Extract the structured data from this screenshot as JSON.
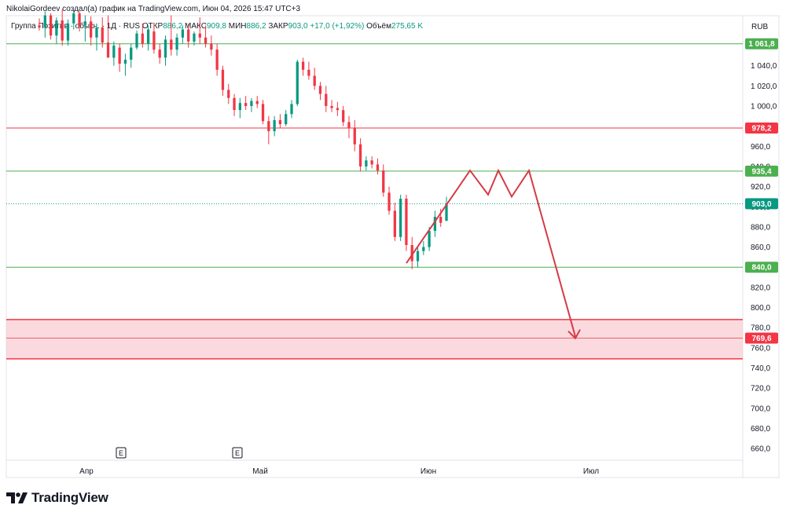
{
  "header": {
    "publish_note": "NikolaiGordeev создал(a) график на TradingView.com, Июн 04, 2026 15:47 UTC+3",
    "symbol": "Группа Позитив · обыкн. · 1Д · RUS",
    "open_label": "ОТКР",
    "open_value": "886,2",
    "high_label": "МАКС",
    "high_value": "909,8",
    "low_label": "МИН",
    "low_value": "886,2",
    "close_label": "ЗАКР",
    "close_value": "903,0",
    "change": "+17,0 (+1,92%)",
    "volume_label": "Объём",
    "volume_value": "275,65 K",
    "currency": "RUB"
  },
  "colors": {
    "up": "#089981",
    "down": "#f23645",
    "support": "#4caf50",
    "resistance": "#f23645",
    "zone_fill": "#f8cdd3",
    "projection": "#d63a46",
    "axis_text": "#131722",
    "last_price_line": "#089981"
  },
  "chart_data": {
    "type": "candlestick",
    "symbol": "Группа Позитив",
    "timeframe": "1Д",
    "y_axis_ticks": [
      1040,
      1020,
      1000,
      980,
      960,
      940,
      920,
      900,
      880,
      860,
      840,
      820,
      800,
      780,
      760,
      740,
      720,
      700,
      680,
      660
    ],
    "y_tick_labels": [
      "1 040,0",
      "1 020,0",
      "1 000,0",
      "980,0",
      "960,0",
      "940,0",
      "920,0",
      "900,0",
      "880,0",
      "860,0",
      "840,0",
      "820,0",
      "800,0",
      "780,0",
      "760,0",
      "740,0",
      "720,0",
      "700,0",
      "680,0",
      "660,0"
    ],
    "ylim": [
      648,
      1100
    ],
    "x_axis_labels": [
      "Апр",
      "Май",
      "Июн",
      "Июл"
    ],
    "events": [
      "E",
      "E"
    ],
    "levels": [
      {
        "value": 1061.8,
        "label": "1 061,8",
        "kind": "support"
      },
      {
        "value": 978.2,
        "label": "978,2",
        "kind": "resistance"
      },
      {
        "value": 935.4,
        "label": "935,4",
        "kind": "support"
      },
      {
        "value": 903.0,
        "label": "903,0",
        "kind": "last"
      },
      {
        "value": 840.0,
        "label": "840,0",
        "kind": "support"
      }
    ],
    "zone": {
      "top": 788,
      "bottom": 749,
      "mid": 769.6,
      "label": "769,6"
    },
    "candles": [
      [
        1080,
        1087,
        1075,
        1078
      ],
      [
        1078,
        1094,
        1068,
        1090
      ],
      [
        1090,
        1092,
        1066,
        1070
      ],
      [
        1070,
        1088,
        1062,
        1085
      ],
      [
        1085,
        1096,
        1060,
        1065
      ],
      [
        1065,
        1086,
        1060,
        1082
      ],
      [
        1082,
        1095,
        1076,
        1092
      ],
      [
        1092,
        1094,
        1074,
        1080
      ],
      [
        1080,
        1090,
        1064,
        1084
      ],
      [
        1084,
        1089,
        1060,
        1068
      ],
      [
        1068,
        1082,
        1055,
        1078
      ],
      [
        1078,
        1088,
        1058,
        1063
      ],
      [
        1063,
        1090,
        1050,
        1048
      ],
      [
        1048,
        1064,
        1040,
        1060
      ],
      [
        1058,
        1062,
        1034,
        1042
      ],
      [
        1042,
        1052,
        1030,
        1046
      ],
      [
        1046,
        1062,
        1038,
        1058
      ],
      [
        1058,
        1075,
        1056,
        1072
      ],
      [
        1072,
        1082,
        1058,
        1062
      ],
      [
        1062,
        1080,
        1055,
        1076
      ],
      [
        1074,
        1082,
        1052,
        1056
      ],
      [
        1056,
        1062,
        1042,
        1048
      ],
      [
        1048,
        1070,
        1040,
        1066
      ],
      [
        1066,
        1090,
        1050,
        1056
      ],
      [
        1056,
        1072,
        1050,
        1068
      ],
      [
        1068,
        1080,
        1062,
        1076
      ],
      [
        1076,
        1082,
        1058,
        1064
      ],
      [
        1064,
        1074,
        1060,
        1072
      ],
      [
        1072,
        1088,
        1062,
        1068
      ],
      [
        1068,
        1080,
        1058,
        1062
      ],
      [
        1062,
        1070,
        1050,
        1056
      ],
      [
        1056,
        1062,
        1030,
        1036
      ],
      [
        1036,
        1040,
        1010,
        1016
      ],
      [
        1016,
        1022,
        1002,
        1008
      ],
      [
        1008,
        1012,
        990,
        996
      ],
      [
        996,
        1008,
        988,
        1003
      ],
      [
        1003,
        1010,
        996,
        1000
      ],
      [
        1000,
        1008,
        994,
        1005
      ],
      [
        1005,
        1010,
        998,
        1002
      ],
      [
        1002,
        1006,
        982,
        985
      ],
      [
        985,
        990,
        962,
        975
      ],
      [
        975,
        990,
        970,
        986
      ],
      [
        986,
        992,
        978,
        982
      ],
      [
        982,
        996,
        980,
        992
      ],
      [
        992,
        1006,
        988,
        1002
      ],
      [
        1002,
        1046,
        1000,
        1044
      ],
      [
        1044,
        1048,
        1030,
        1036
      ],
      [
        1036,
        1044,
        1026,
        1030
      ],
      [
        1030,
        1038,
        1016,
        1020
      ],
      [
        1020,
        1024,
        1006,
        1012
      ],
      [
        1012,
        1020,
        994,
        1000
      ],
      [
        1000,
        1006,
        994,
        998
      ],
      [
        998,
        1004,
        990,
        996
      ],
      [
        996,
        1000,
        980,
        984
      ],
      [
        984,
        990,
        968,
        978
      ],
      [
        978,
        986,
        955,
        962
      ],
      [
        962,
        968,
        935,
        940
      ],
      [
        940,
        950,
        936,
        946
      ],
      [
        946,
        950,
        938,
        942
      ],
      [
        942,
        948,
        932,
        936
      ],
      [
        936,
        942,
        910,
        914
      ],
      [
        914,
        920,
        892,
        896
      ],
      [
        896,
        904,
        866,
        870
      ],
      [
        870,
        912,
        866,
        908
      ],
      [
        908,
        912,
        856,
        862
      ],
      [
        862,
        870,
        838,
        846
      ],
      [
        846,
        860,
        840,
        856
      ],
      [
        856,
        866,
        852,
        860
      ],
      [
        860,
        880,
        856,
        876
      ],
      [
        876,
        896,
        870,
        890
      ],
      [
        890,
        898,
        880,
        884
      ],
      [
        886,
        910,
        886,
        903
      ]
    ],
    "projection_path": [
      [
        852,
        844
      ],
      [
        917,
        936
      ],
      [
        922,
        912
      ],
      [
        929,
        936
      ],
      [
        936,
        910
      ],
      [
        944,
        936
      ],
      [
        961,
        771
      ]
    ],
    "projection_arrow": true
  }
}
